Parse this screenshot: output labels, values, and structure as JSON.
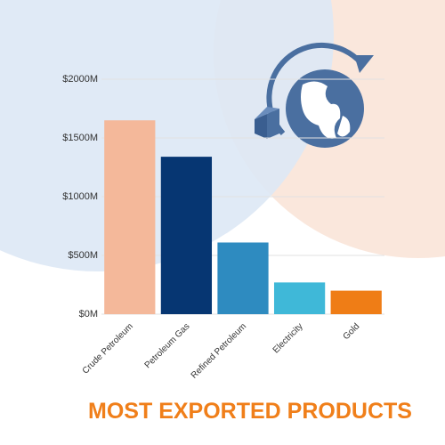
{
  "chart_data": {
    "type": "bar",
    "title": "MOST EXPORTED PRODUCTS",
    "categories": [
      "Crude Petroleum",
      "Petroleum Gas",
      "Refined Petroleum",
      "Electricity",
      "Gold"
    ],
    "values": [
      1650,
      1340,
      610,
      270,
      200
    ],
    "colors": [
      "#f4b89a",
      "#063672",
      "#2e8bc0",
      "#3fb8d8",
      "#ef7d16"
    ],
    "ylim": [
      0,
      2000
    ],
    "yticks": [
      {
        "value": 0,
        "label": "$0M"
      },
      {
        "value": 500,
        "label": "$500M"
      },
      {
        "value": 1000,
        "label": "$1000M"
      },
      {
        "value": 1500,
        "label": "$1500M"
      },
      {
        "value": 2000,
        "label": "$2000M"
      }
    ],
    "grid": true
  }
}
